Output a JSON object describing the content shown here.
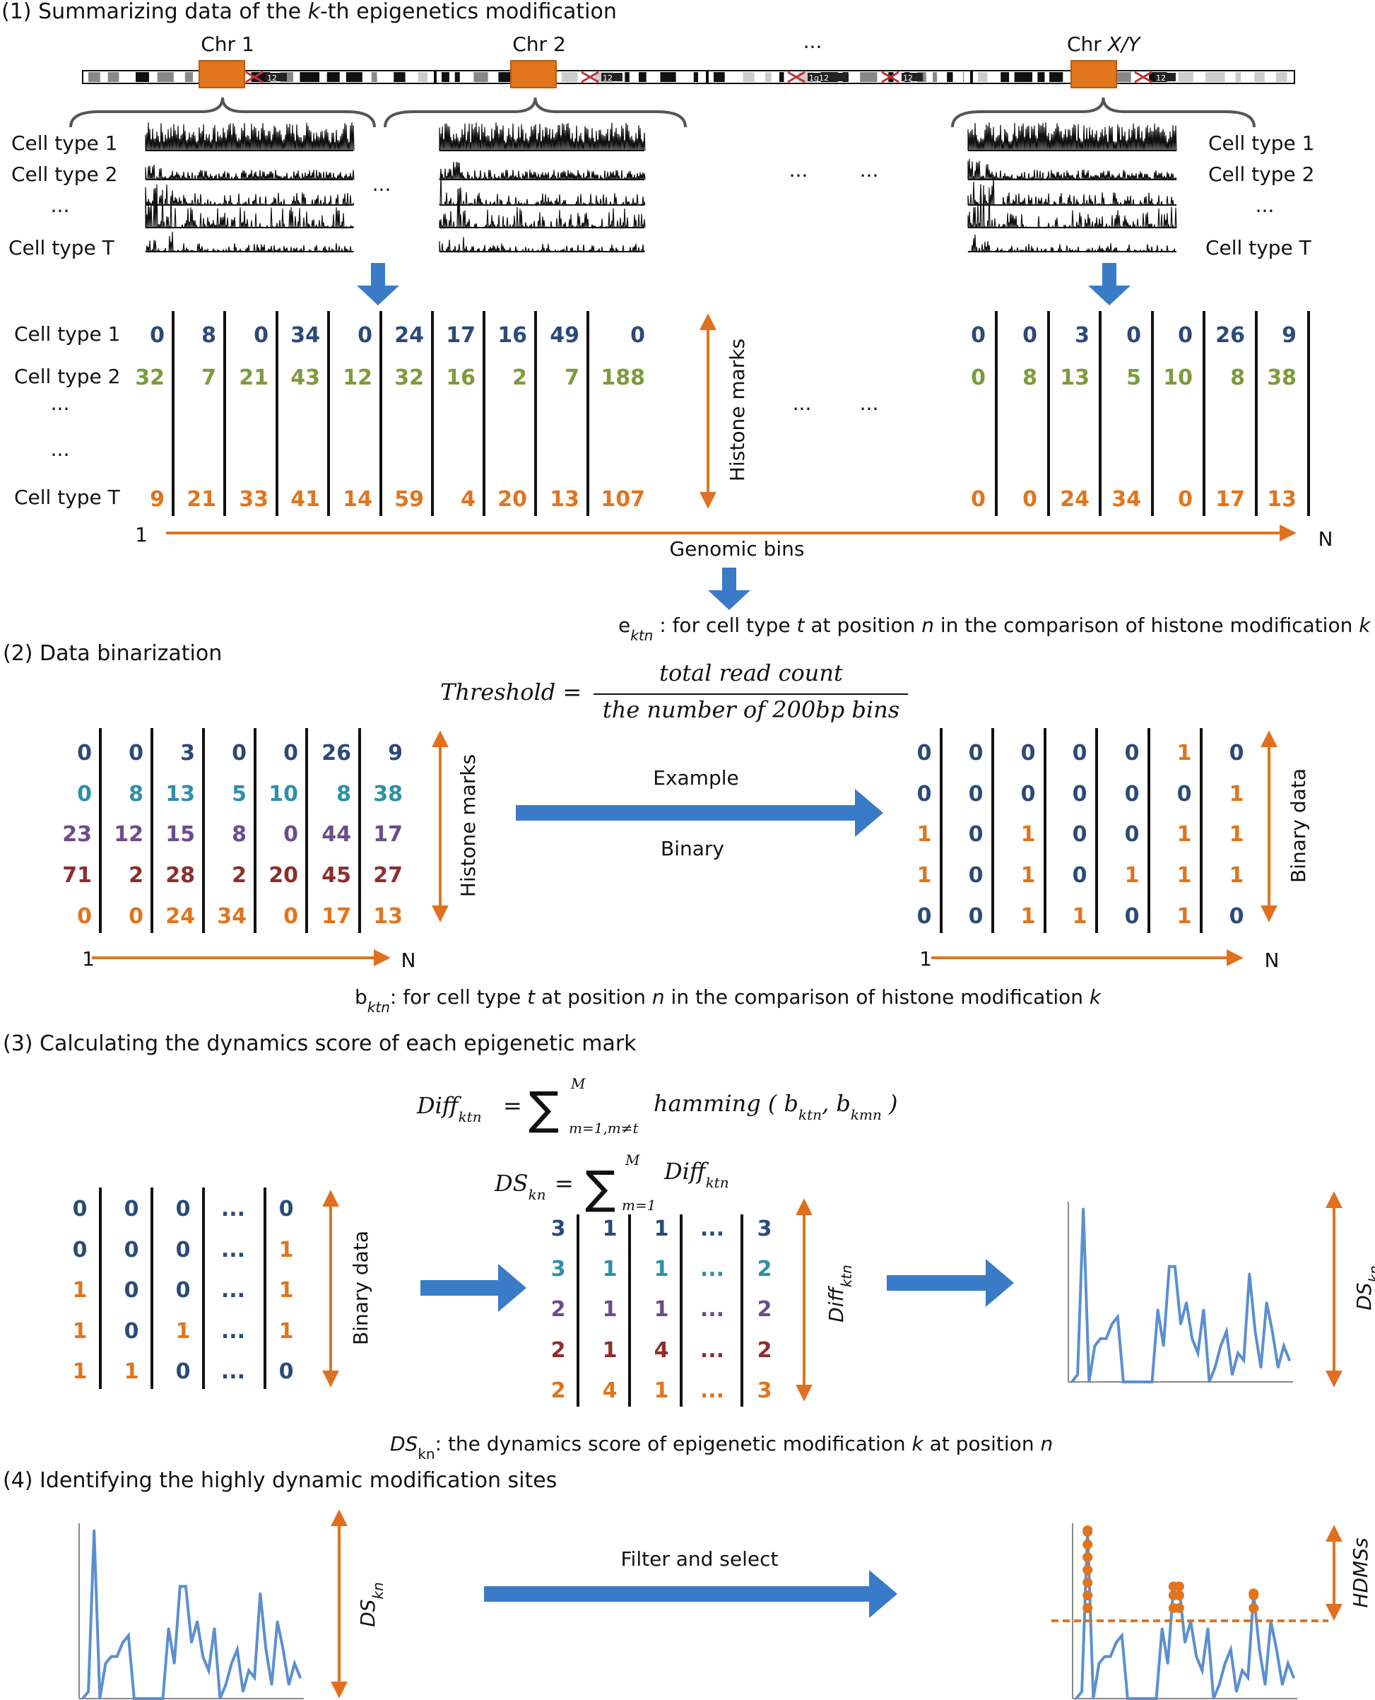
{
  "colors": {
    "navy": "#2B4A78",
    "olive": "#7F9A3C",
    "orange": "#E0751E",
    "teal": "#2E8FA8",
    "purple": "#6B4C8C",
    "maroon": "#8C2E2E",
    "blue": "#3A7BC8",
    "line_blue": "#5B8FD0",
    "black": "#111111"
  },
  "section1": {
    "title_pre": "(1) Summarizing data of the ",
    "title_italic": "k",
    "title_post": "-th epigenetics  modification",
    "chromosomes": [
      "Chr 1",
      "Chr 2",
      "...",
      "Chr X/Y"
    ],
    "band_labels": [
      "12",
      "12",
      "1q12",
      "12",
      "12"
    ],
    "cell_types_left": [
      "Cell type 1",
      "Cell type 2",
      "...",
      "Cell type T"
    ],
    "cell_types_right": [
      "Cell type 1",
      "Cell type 2",
      "...",
      "Cell type T"
    ],
    "ellipsis": "...",
    "matrix_row_labels": [
      "Cell type 1",
      "Cell type 2",
      "...",
      "...",
      "Cell type T"
    ],
    "left_matrix": {
      "row1": [
        "0",
        "8",
        "0",
        "34",
        "0",
        "24",
        "17",
        "16",
        "49",
        "0"
      ],
      "row2": [
        "32",
        "7",
        "21",
        "43",
        "12",
        "32",
        "16",
        "2",
        "7",
        "188"
      ],
      "rowT": [
        "9",
        "21",
        "33",
        "41",
        "14",
        "59",
        "4",
        "20",
        "13",
        "107"
      ]
    },
    "right_matrix": {
      "row1": [
        "0",
        "0",
        "3",
        "0",
        "0",
        "26",
        "9"
      ],
      "row2": [
        "0",
        "8",
        "13",
        "5",
        "10",
        "8",
        "38"
      ],
      "rowT": [
        "0",
        "0",
        "24",
        "34",
        "0",
        "17",
        "13"
      ]
    },
    "histone_marks": "Histone marks",
    "axis_start": "1",
    "axis_end": "N",
    "genomic_bins": "Genomic bins",
    "e_def_var": "e",
    "e_def_sub": "ktn",
    "e_def_text": " : for cell type ",
    "e_def_t": "t",
    "e_def_text2": " at position ",
    "e_def_n": "n",
    "e_def_text3": " in the comparison of histone modification ",
    "e_def_k": "k"
  },
  "section2": {
    "title": "(2) Data binarization",
    "threshold_lhs": "Threshold =",
    "threshold_num": "total read count",
    "threshold_den": "the number of 200bp bins",
    "left_rows": [
      [
        "0",
        "0",
        "3",
        "0",
        "0",
        "26",
        "9"
      ],
      [
        "0",
        "8",
        "13",
        "5",
        "10",
        "8",
        "38"
      ],
      [
        "23",
        "12",
        "15",
        "8",
        "0",
        "44",
        "17"
      ],
      [
        "71",
        "2",
        "28",
        "2",
        "20",
        "45",
        "27"
      ],
      [
        "0",
        "0",
        "24",
        "34",
        "0",
        "17",
        "13"
      ]
    ],
    "right_rows": [
      [
        "0",
        "0",
        "0",
        "0",
        "0",
        "1",
        "0"
      ],
      [
        "0",
        "0",
        "0",
        "0",
        "0",
        "0",
        "1"
      ],
      [
        "1",
        "0",
        "1",
        "0",
        "0",
        "1",
        "1"
      ],
      [
        "1",
        "0",
        "1",
        "0",
        "1",
        "1",
        "1"
      ],
      [
        "0",
        "0",
        "1",
        "1",
        "0",
        "1",
        "0"
      ]
    ],
    "histone_marks": "Histone marks",
    "binary_data": "Binary data",
    "example": "Example",
    "binary": "Binary",
    "axis_start": "1",
    "axis_end": "N",
    "b_def_var": "b",
    "b_def_sub": "ktn",
    "b_def_text": ": for cell type ",
    "b_def_t": "t",
    "b_def_text2": " at position ",
    "b_def_n": "n",
    "b_def_text3": " in the comparison of histone modification ",
    "b_def_k": "k"
  },
  "section3": {
    "title": "(3) Calculating the dynamics score of each epigenetic mark",
    "diff_lhs": "Diff",
    "diff_lhs_sub": "ktn",
    "diff_eq": "=",
    "diff_sum_top": "M",
    "diff_sum_bottom": "m=1,m≠t",
    "diff_rhs": "hamming ( b",
    "diff_rhs_sub1": "ktn",
    "diff_rhs_mid": ", b",
    "diff_rhs_sub2": "kmn",
    "diff_rhs_end": ")",
    "ds_lhs": "DS",
    "ds_lhs_sub": "kn",
    "ds_eq": "=",
    "ds_sum_top": "M",
    "ds_sum_bottom": "m=1",
    "ds_rhs": "Diff",
    "ds_rhs_sub": "ktn",
    "binary_rows": [
      [
        "0",
        "0",
        "0",
        "...",
        "0"
      ],
      [
        "0",
        "0",
        "0",
        "...",
        "1"
      ],
      [
        "1",
        "0",
        "0",
        "...",
        "1"
      ],
      [
        "1",
        "0",
        "1",
        "...",
        "1"
      ],
      [
        "1",
        "1",
        "0",
        "...",
        "0"
      ]
    ],
    "diff_rows": [
      [
        "3",
        "1",
        "1",
        "...",
        "3"
      ],
      [
        "3",
        "1",
        "1",
        "...",
        "2"
      ],
      [
        "2",
        "1",
        "1",
        "...",
        "2"
      ],
      [
        "2",
        "1",
        "4",
        "...",
        "2"
      ],
      [
        "2",
        "4",
        "1",
        "...",
        "3"
      ]
    ],
    "binary_data": "Binary data",
    "diff_label": "Diff",
    "diff_label_sub": "ktn",
    "ds_label": "DS",
    "ds_label_sub": "kn",
    "ds_def_var": "DS",
    "ds_def_sub": "kn",
    "ds_def_text": ": the dynamics score of epigenetic modification ",
    "ds_def_k": "k",
    "ds_def_text2": " at position ",
    "ds_def_n": "n"
  },
  "section4": {
    "title": "(4) Identifying  the highly dynamic modification sites",
    "filter_label": "Filter and select",
    "ds_label": "DS",
    "ds_label_sub": "kn",
    "hdms_label": "HDMSs"
  },
  "chart_data": {
    "type": "line",
    "series": [
      {
        "values": [
          0,
          1,
          24,
          0,
          5,
          6,
          6,
          8,
          9,
          0,
          0,
          0,
          0,
          0,
          0,
          10,
          5,
          16,
          16,
          8,
          11,
          6,
          4,
          10,
          0,
          2,
          5,
          7,
          1,
          4,
          3,
          15,
          7,
          2,
          11,
          7,
          2,
          5,
          3
        ]
      }
    ]
  }
}
